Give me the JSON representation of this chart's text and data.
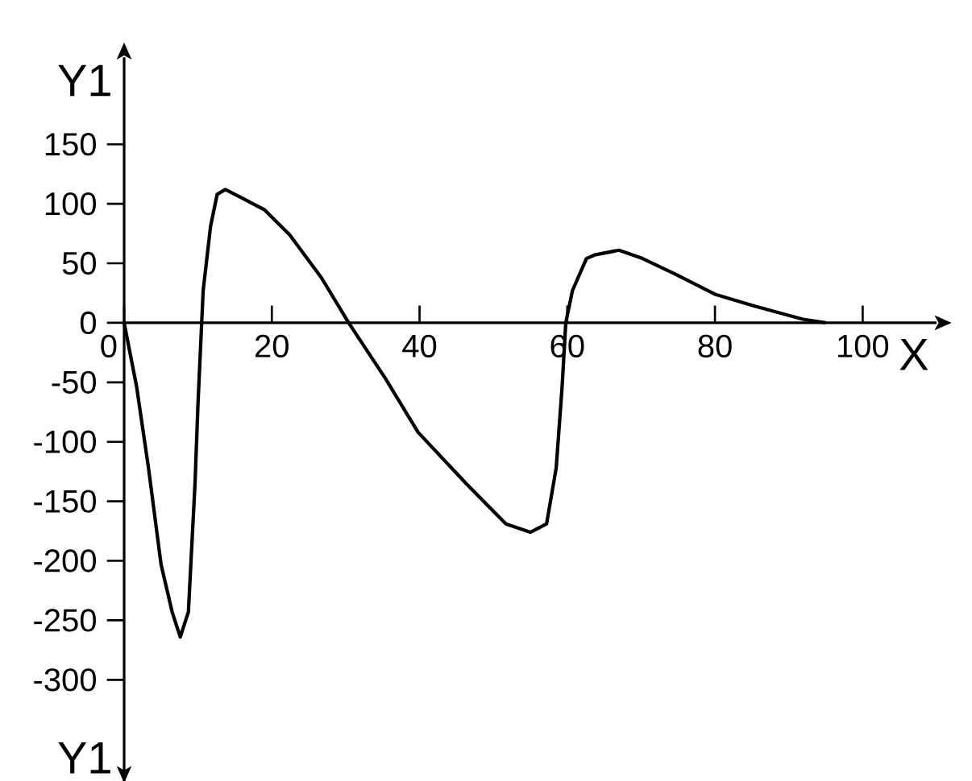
{
  "chart_data": {
    "type": "line",
    "xlabel": "X",
    "ylabel": "Y1",
    "annotations": [
      "Y1"
    ],
    "x": [
      0,
      1.7,
      3.3,
      5,
      6.5,
      7.6,
      8.7,
      9.6,
      10,
      10.7,
      11.7,
      12.6,
      13.7,
      15.9,
      19,
      22.4,
      26.7,
      30.4,
      35.4,
      39.8,
      46.3,
      51.7,
      55,
      57.2,
      58.5,
      59.3,
      59.8,
      60.7,
      62.6,
      63.7,
      67,
      70.2,
      74.6,
      80,
      85.4,
      91.9,
      95
    ],
    "series": [
      {
        "color": "#000000",
        "values": [
          0,
          -54,
          -122,
          -203,
          -243,
          -264,
          -243,
          -135,
          -68,
          27,
          81,
          108,
          112,
          105,
          95,
          74,
          38,
          0,
          -47,
          -92,
          -135,
          -169,
          -176,
          -169,
          -122,
          -54,
          0,
          27,
          54,
          57,
          61,
          54,
          41,
          24,
          14,
          3,
          0
        ]
      }
    ],
    "xlim": [
      0,
      110
    ],
    "ylim": [
      -385,
      223
    ],
    "xticks": [
      0,
      20,
      40,
      60,
      80,
      100
    ],
    "yticks": [
      -300,
      -250,
      -200,
      -150,
      -100,
      -50,
      0,
      50,
      100,
      150
    ],
    "grid": false,
    "marker": "none",
    "line_style": "solid"
  }
}
